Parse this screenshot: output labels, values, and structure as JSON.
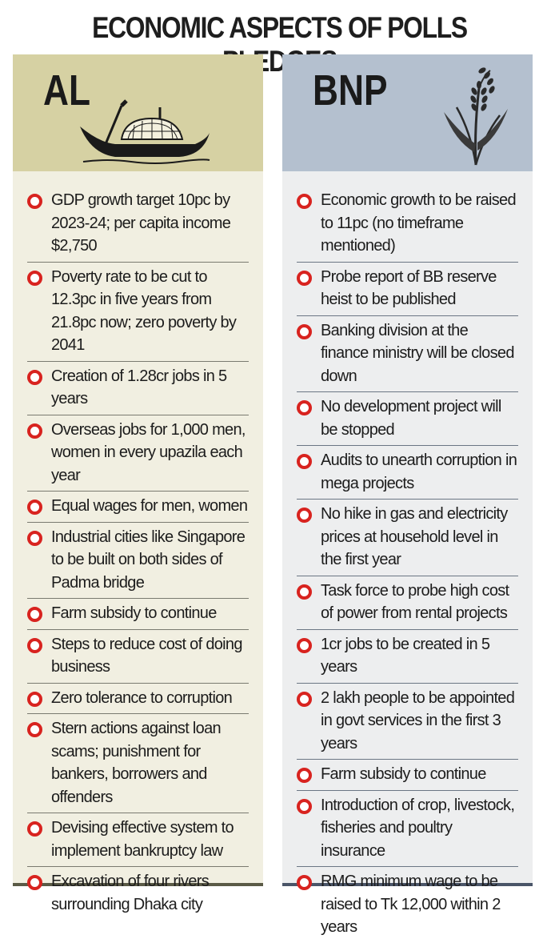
{
  "title": "ECONOMIC ASPECTS OF POLLS PLEDGES",
  "al": {
    "name": "AL",
    "icon": "boat-icon",
    "items": [
      "GDP growth target 10pc by 2023-24; per capita income $2,750",
      "Poverty rate to be cut to 12.3pc in five years from 21.8pc now; zero poverty by 2041",
      "Creation of 1.28cr jobs in 5 years",
      "Overseas jobs for 1,000 men, women in every upazila each year",
      "Equal wages for men, women",
      "Industrial cities like Singapore to be built on both sides of Padma bridge",
      "Farm subsidy to continue",
      "Steps to reduce cost of doing business",
      "Zero tolerance to corruption",
      "Stern actions against loan scams; punishment for bankers, borrowers and offenders",
      "Devising effective system to implement bankruptcy law",
      "Excavation of four rivers surrounding Dhaka city"
    ]
  },
  "bnp": {
    "name": "BNP",
    "icon": "paddy-sheaf-icon",
    "items": [
      "Economic growth to be raised to 11pc (no timeframe mentioned)",
      "Probe report of BB reserve heist to be published",
      "Banking division at the finance ministry will be closed down",
      "No development project will be stopped",
      "Audits to unearth corruption in mega projects",
      "No hike in gas and electricity prices at household level in the first year",
      "Task force to probe high cost of power from rental projects",
      "1cr jobs to be created in 5 years",
      "2 lakh people to be appointed in govt services in the first 3 years",
      "Farm subsidy to continue",
      "Introduction of crop, livestock, fisheries and poultry insurance",
      "RMG minimum wage to be raised to Tk 12,000 within 2 years"
    ]
  },
  "colors": {
    "bullet": "#d8231f",
    "al_header": "#d6d1a3",
    "al_body": "#f1efe1",
    "bnp_header": "#b4c0cf",
    "bnp_body": "#edeeef"
  }
}
